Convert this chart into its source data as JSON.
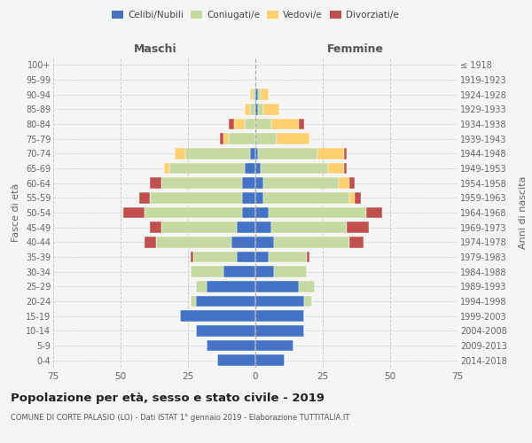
{
  "age_groups": [
    "0-4",
    "5-9",
    "10-14",
    "15-19",
    "20-24",
    "25-29",
    "30-34",
    "35-39",
    "40-44",
    "45-49",
    "50-54",
    "55-59",
    "60-64",
    "65-69",
    "70-74",
    "75-79",
    "80-84",
    "85-89",
    "90-94",
    "95-99",
    "100+"
  ],
  "birth_years": [
    "2014-2018",
    "2009-2013",
    "2004-2008",
    "1999-2003",
    "1994-1998",
    "1989-1993",
    "1984-1988",
    "1979-1983",
    "1974-1978",
    "1969-1973",
    "1964-1968",
    "1959-1963",
    "1954-1958",
    "1949-1953",
    "1944-1948",
    "1939-1943",
    "1934-1938",
    "1929-1933",
    "1924-1928",
    "1919-1923",
    "≤ 1918"
  ],
  "males": {
    "celibi": [
      14,
      18,
      22,
      28,
      22,
      18,
      12,
      7,
      9,
      7,
      5,
      5,
      5,
      4,
      2,
      0,
      0,
      0,
      0,
      0,
      0
    ],
    "coniugati": [
      0,
      0,
      0,
      0,
      2,
      4,
      12,
      16,
      28,
      28,
      36,
      34,
      30,
      28,
      24,
      10,
      4,
      2,
      1,
      0,
      0
    ],
    "vedovi": [
      0,
      0,
      0,
      0,
      0,
      0,
      0,
      0,
      0,
      0,
      0,
      0,
      0,
      2,
      4,
      2,
      4,
      2,
      1,
      0,
      0
    ],
    "divorziati": [
      0,
      0,
      0,
      0,
      0,
      0,
      0,
      1,
      4,
      4,
      8,
      4,
      4,
      0,
      0,
      1,
      2,
      0,
      0,
      0,
      0
    ]
  },
  "females": {
    "nubili": [
      11,
      14,
      18,
      18,
      18,
      16,
      7,
      5,
      7,
      6,
      5,
      3,
      3,
      2,
      1,
      0,
      0,
      1,
      1,
      0,
      0
    ],
    "coniugate": [
      0,
      0,
      0,
      0,
      3,
      6,
      12,
      14,
      28,
      28,
      36,
      32,
      28,
      25,
      22,
      8,
      6,
      2,
      1,
      0,
      0
    ],
    "vedove": [
      0,
      0,
      0,
      0,
      0,
      0,
      0,
      0,
      0,
      0,
      0,
      2,
      4,
      6,
      10,
      12,
      10,
      6,
      3,
      0,
      0
    ],
    "divorziate": [
      0,
      0,
      0,
      0,
      0,
      0,
      0,
      1,
      5,
      8,
      6,
      2,
      2,
      1,
      1,
      0,
      2,
      0,
      0,
      0,
      0
    ]
  },
  "colors": {
    "celibi": "#4472C4",
    "coniugati": "#C5D9A0",
    "vedovi": "#FFD070",
    "divorziati": "#C0504D"
  },
  "xlim": 75,
  "title": "Popolazione per età, sesso e stato civile - 2019",
  "subtitle": "COMUNE DI CORTE PALASIO (LO) - Dati ISTAT 1° gennaio 2019 - Elaborazione TUTTITALIA.IT",
  "ylabel_left": "Fasce di età",
  "ylabel_right": "Anni di nascita",
  "xlabel_maschi": "Maschi",
  "xlabel_femmine": "Femmine",
  "legend_labels": [
    "Celibi/Nubili",
    "Coniugati/e",
    "Vedovi/e",
    "Divorziati/e"
  ],
  "bg_color": "#f5f5f5",
  "grid_color": "#cccccc"
}
